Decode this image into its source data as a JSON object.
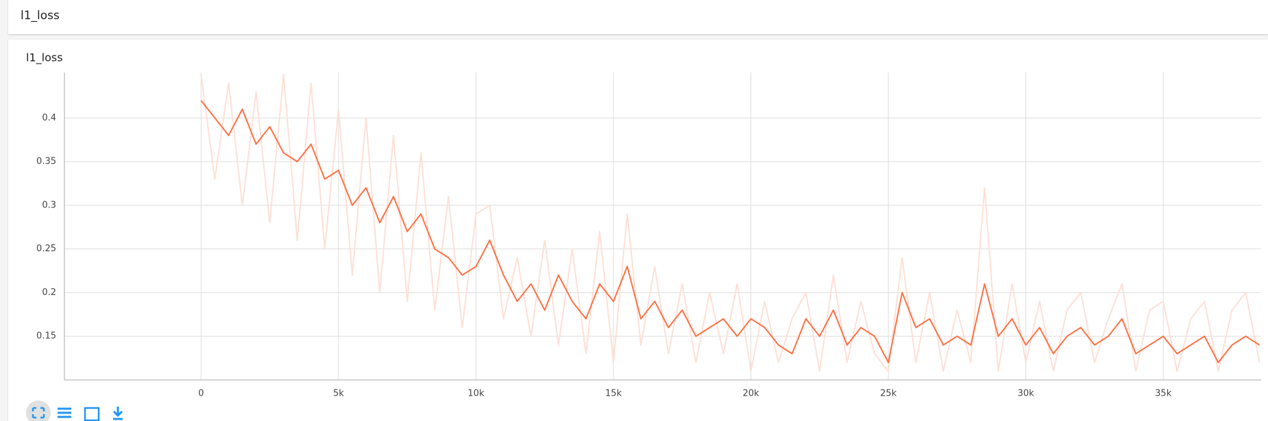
{
  "header": {
    "title": "l1_loss"
  },
  "chart_data": {
    "type": "line",
    "title": "l1_loss",
    "x": [
      0,
      500,
      1000,
      1500,
      2000,
      2500,
      3000,
      3500,
      4000,
      4500,
      5000,
      5500,
      6000,
      6500,
      7000,
      7500,
      8000,
      8500,
      9000,
      9500,
      10000,
      10500,
      11000,
      11500,
      12000,
      12500,
      13000,
      13500,
      14000,
      14500,
      15000,
      15500,
      16000,
      16500,
      17000,
      17500,
      18000,
      18500,
      19000,
      19500,
      20000,
      20500,
      21000,
      21500,
      22000,
      22500,
      23000,
      23500,
      24000,
      24500,
      25000,
      25500,
      26000,
      26500,
      27000,
      27500,
      28000,
      28500,
      29000,
      29500,
      30000,
      30500,
      31000,
      31500,
      32000,
      32500,
      33000,
      33500,
      34000,
      34500,
      35000,
      35500,
      36000,
      36500,
      37000,
      37500,
      38000,
      38500
    ],
    "series": [
      {
        "color": "#fde0d6",
        "values": [
          0.45,
          0.33,
          0.44,
          0.3,
          0.43,
          0.28,
          0.45,
          0.26,
          0.44,
          0.25,
          0.41,
          0.22,
          0.4,
          0.2,
          0.38,
          0.19,
          0.36,
          0.18,
          0.31,
          0.16,
          0.29,
          0.3,
          0.17,
          0.24,
          0.15,
          0.26,
          0.14,
          0.25,
          0.13,
          0.27,
          0.12,
          0.29,
          0.14,
          0.23,
          0.13,
          0.21,
          0.12,
          0.2,
          0.13,
          0.21,
          0.11,
          0.19,
          0.12,
          0.17,
          0.2,
          0.11,
          0.22,
          0.12,
          0.19,
          0.13,
          0.11,
          0.24,
          0.12,
          0.2,
          0.11,
          0.18,
          0.12,
          0.32,
          0.11,
          0.21,
          0.12,
          0.19,
          0.11,
          0.18,
          0.2,
          0.12,
          0.17,
          0.21,
          0.11,
          0.18,
          0.19,
          0.11,
          0.17,
          0.19,
          0.11,
          0.18,
          0.2,
          0.12
        ]
      },
      {
        "color": "#ff7043",
        "values": [
          0.42,
          0.4,
          0.38,
          0.41,
          0.37,
          0.39,
          0.36,
          0.35,
          0.37,
          0.33,
          0.34,
          0.3,
          0.32,
          0.28,
          0.31,
          0.27,
          0.29,
          0.25,
          0.24,
          0.22,
          0.23,
          0.26,
          0.22,
          0.19,
          0.21,
          0.18,
          0.22,
          0.19,
          0.17,
          0.21,
          0.19,
          0.23,
          0.17,
          0.19,
          0.16,
          0.18,
          0.15,
          0.16,
          0.17,
          0.15,
          0.17,
          0.16,
          0.14,
          0.13,
          0.17,
          0.15,
          0.18,
          0.14,
          0.16,
          0.15,
          0.12,
          0.2,
          0.16,
          0.17,
          0.14,
          0.15,
          0.14,
          0.21,
          0.15,
          0.17,
          0.14,
          0.16,
          0.13,
          0.15,
          0.16,
          0.14,
          0.15,
          0.17,
          0.13,
          0.14,
          0.15,
          0.13,
          0.14,
          0.15,
          0.12,
          0.14,
          0.15,
          0.14
        ]
      }
    ],
    "xlim": [
      -4970,
      38560
    ],
    "ylim": [
      0.1,
      0.452
    ],
    "xticks": [
      0,
      {
        "value": 5000,
        "label": "5k"
      },
      {
        "value": 10000,
        "label": "10k"
      },
      {
        "value": 15000,
        "label": "15k"
      },
      {
        "value": 20000,
        "label": "20k"
      },
      {
        "value": 25000,
        "label": "25k"
      },
      {
        "value": 30000,
        "label": "30k"
      },
      {
        "value": 35000,
        "label": "35k"
      }
    ],
    "yticks": [
      0.15,
      0.2,
      0.25,
      0.3,
      0.35,
      0.4
    ],
    "grid": true
  }
}
